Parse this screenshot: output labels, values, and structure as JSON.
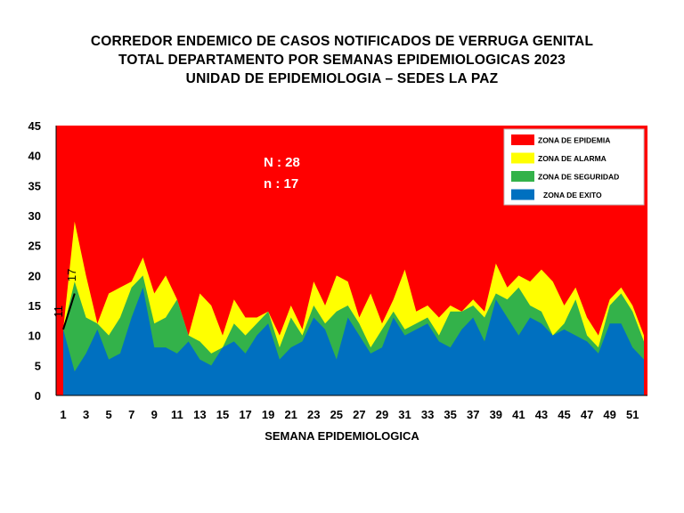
{
  "title_lines": [
    "CORREDOR ENDEMICO DE CASOS NOTIFICADOS DE VERRUGA GENITAL",
    "TOTAL DEPARTAMENTO POR SEMANAS EPIDEMIOLOGICAS 2023",
    "UNIDAD DE EPIDEMIOLOGIA – SEDES LA PAZ"
  ],
  "annotations": {
    "N": "N : 28",
    "n": "n :   17"
  },
  "chart_data": {
    "type": "area",
    "title": "CORREDOR ENDEMICO DE CASOS NOTIFICADOS DE VERRUGA GENITAL TOTAL DEPARTAMENTO POR SEMANAS EPIDEMIOLOGICAS 2023 UNIDAD DE EPIDEMIOLOGIA – SEDES LA PAZ",
    "xlabel": "SEMANA EPIDEMIOLOGICA",
    "ylabel": "",
    "ylim": [
      0,
      45
    ],
    "yticks": [
      0,
      5,
      10,
      15,
      20,
      25,
      30,
      35,
      40,
      45
    ],
    "x": [
      1,
      2,
      3,
      4,
      5,
      6,
      7,
      8,
      9,
      10,
      11,
      12,
      13,
      14,
      15,
      16,
      17,
      18,
      19,
      20,
      21,
      22,
      23,
      24,
      25,
      26,
      27,
      28,
      29,
      30,
      31,
      32,
      33,
      34,
      35,
      36,
      37,
      38,
      39,
      40,
      41,
      42,
      43,
      44,
      45,
      46,
      47,
      48,
      49,
      50,
      51,
      52
    ],
    "xtick_labels": [
      "1",
      "3",
      "5",
      "7",
      "9",
      "11",
      "13",
      "15",
      "17",
      "19",
      "21",
      "23",
      "25",
      "27",
      "29",
      "31",
      "33",
      "35",
      "37",
      "39",
      "41",
      "43",
      "45",
      "47",
      "49",
      "51"
    ],
    "legend_position": "top-right",
    "series": [
      {
        "name": "ZONA DE EPIDEMIA",
        "color": "#ff0000",
        "values": [
          45,
          45,
          45,
          45,
          45,
          45,
          45,
          45,
          45,
          45,
          45,
          45,
          45,
          45,
          45,
          45,
          45,
          45,
          45,
          45,
          45,
          45,
          45,
          45,
          45,
          45,
          45,
          45,
          45,
          45,
          45,
          45,
          45,
          45,
          45,
          45,
          45,
          45,
          45,
          45,
          45,
          45,
          45,
          45,
          45,
          45,
          45,
          45,
          45,
          45,
          45,
          45
        ]
      },
      {
        "name": "ZONA DE ALARMA",
        "color": "#ffff00",
        "values": [
          11,
          29,
          20,
          12,
          17,
          18,
          19,
          23,
          17,
          20,
          16,
          10,
          17,
          15,
          10,
          16,
          13,
          13,
          14,
          10,
          15,
          11,
          19,
          15,
          20,
          19,
          13,
          17,
          12,
          16,
          21,
          14,
          15,
          13,
          15,
          14,
          16,
          14,
          22,
          18,
          20,
          19,
          21,
          19,
          15,
          18,
          13,
          10,
          16,
          18,
          15,
          10
        ]
      },
      {
        "name": "ZONA DE SEGURIDAD",
        "color": "#33b24a",
        "values": [
          11,
          19,
          13,
          12,
          10,
          13,
          18,
          20,
          12,
          13,
          16,
          10,
          9,
          7,
          8,
          12,
          10,
          12,
          14,
          8,
          13,
          10,
          15,
          12,
          14,
          15,
          12,
          8,
          11,
          14,
          11,
          12,
          13,
          10,
          14,
          14,
          15,
          13,
          17,
          16,
          18,
          15,
          14,
          10,
          12,
          16,
          10,
          8,
          15,
          17,
          14,
          9
        ]
      },
      {
        "name": "ZONA DE EXITO",
        "color": "#0070c0",
        "values": [
          11,
          4,
          7,
          11,
          6,
          7,
          13,
          18,
          8,
          8,
          7,
          9,
          6,
          5,
          8,
          9,
          7,
          10,
          12,
          6,
          8,
          9,
          13,
          11,
          6,
          13,
          10,
          7,
          8,
          13,
          10,
          11,
          12,
          9,
          8,
          11,
          13,
          9,
          16,
          13,
          10,
          13,
          12,
          10,
          11,
          10,
          9,
          7,
          12,
          12,
          8,
          6
        ]
      }
    ],
    "data_labels": [
      {
        "x": 1,
        "text": "11"
      },
      {
        "x": 2,
        "text": "17"
      }
    ]
  }
}
